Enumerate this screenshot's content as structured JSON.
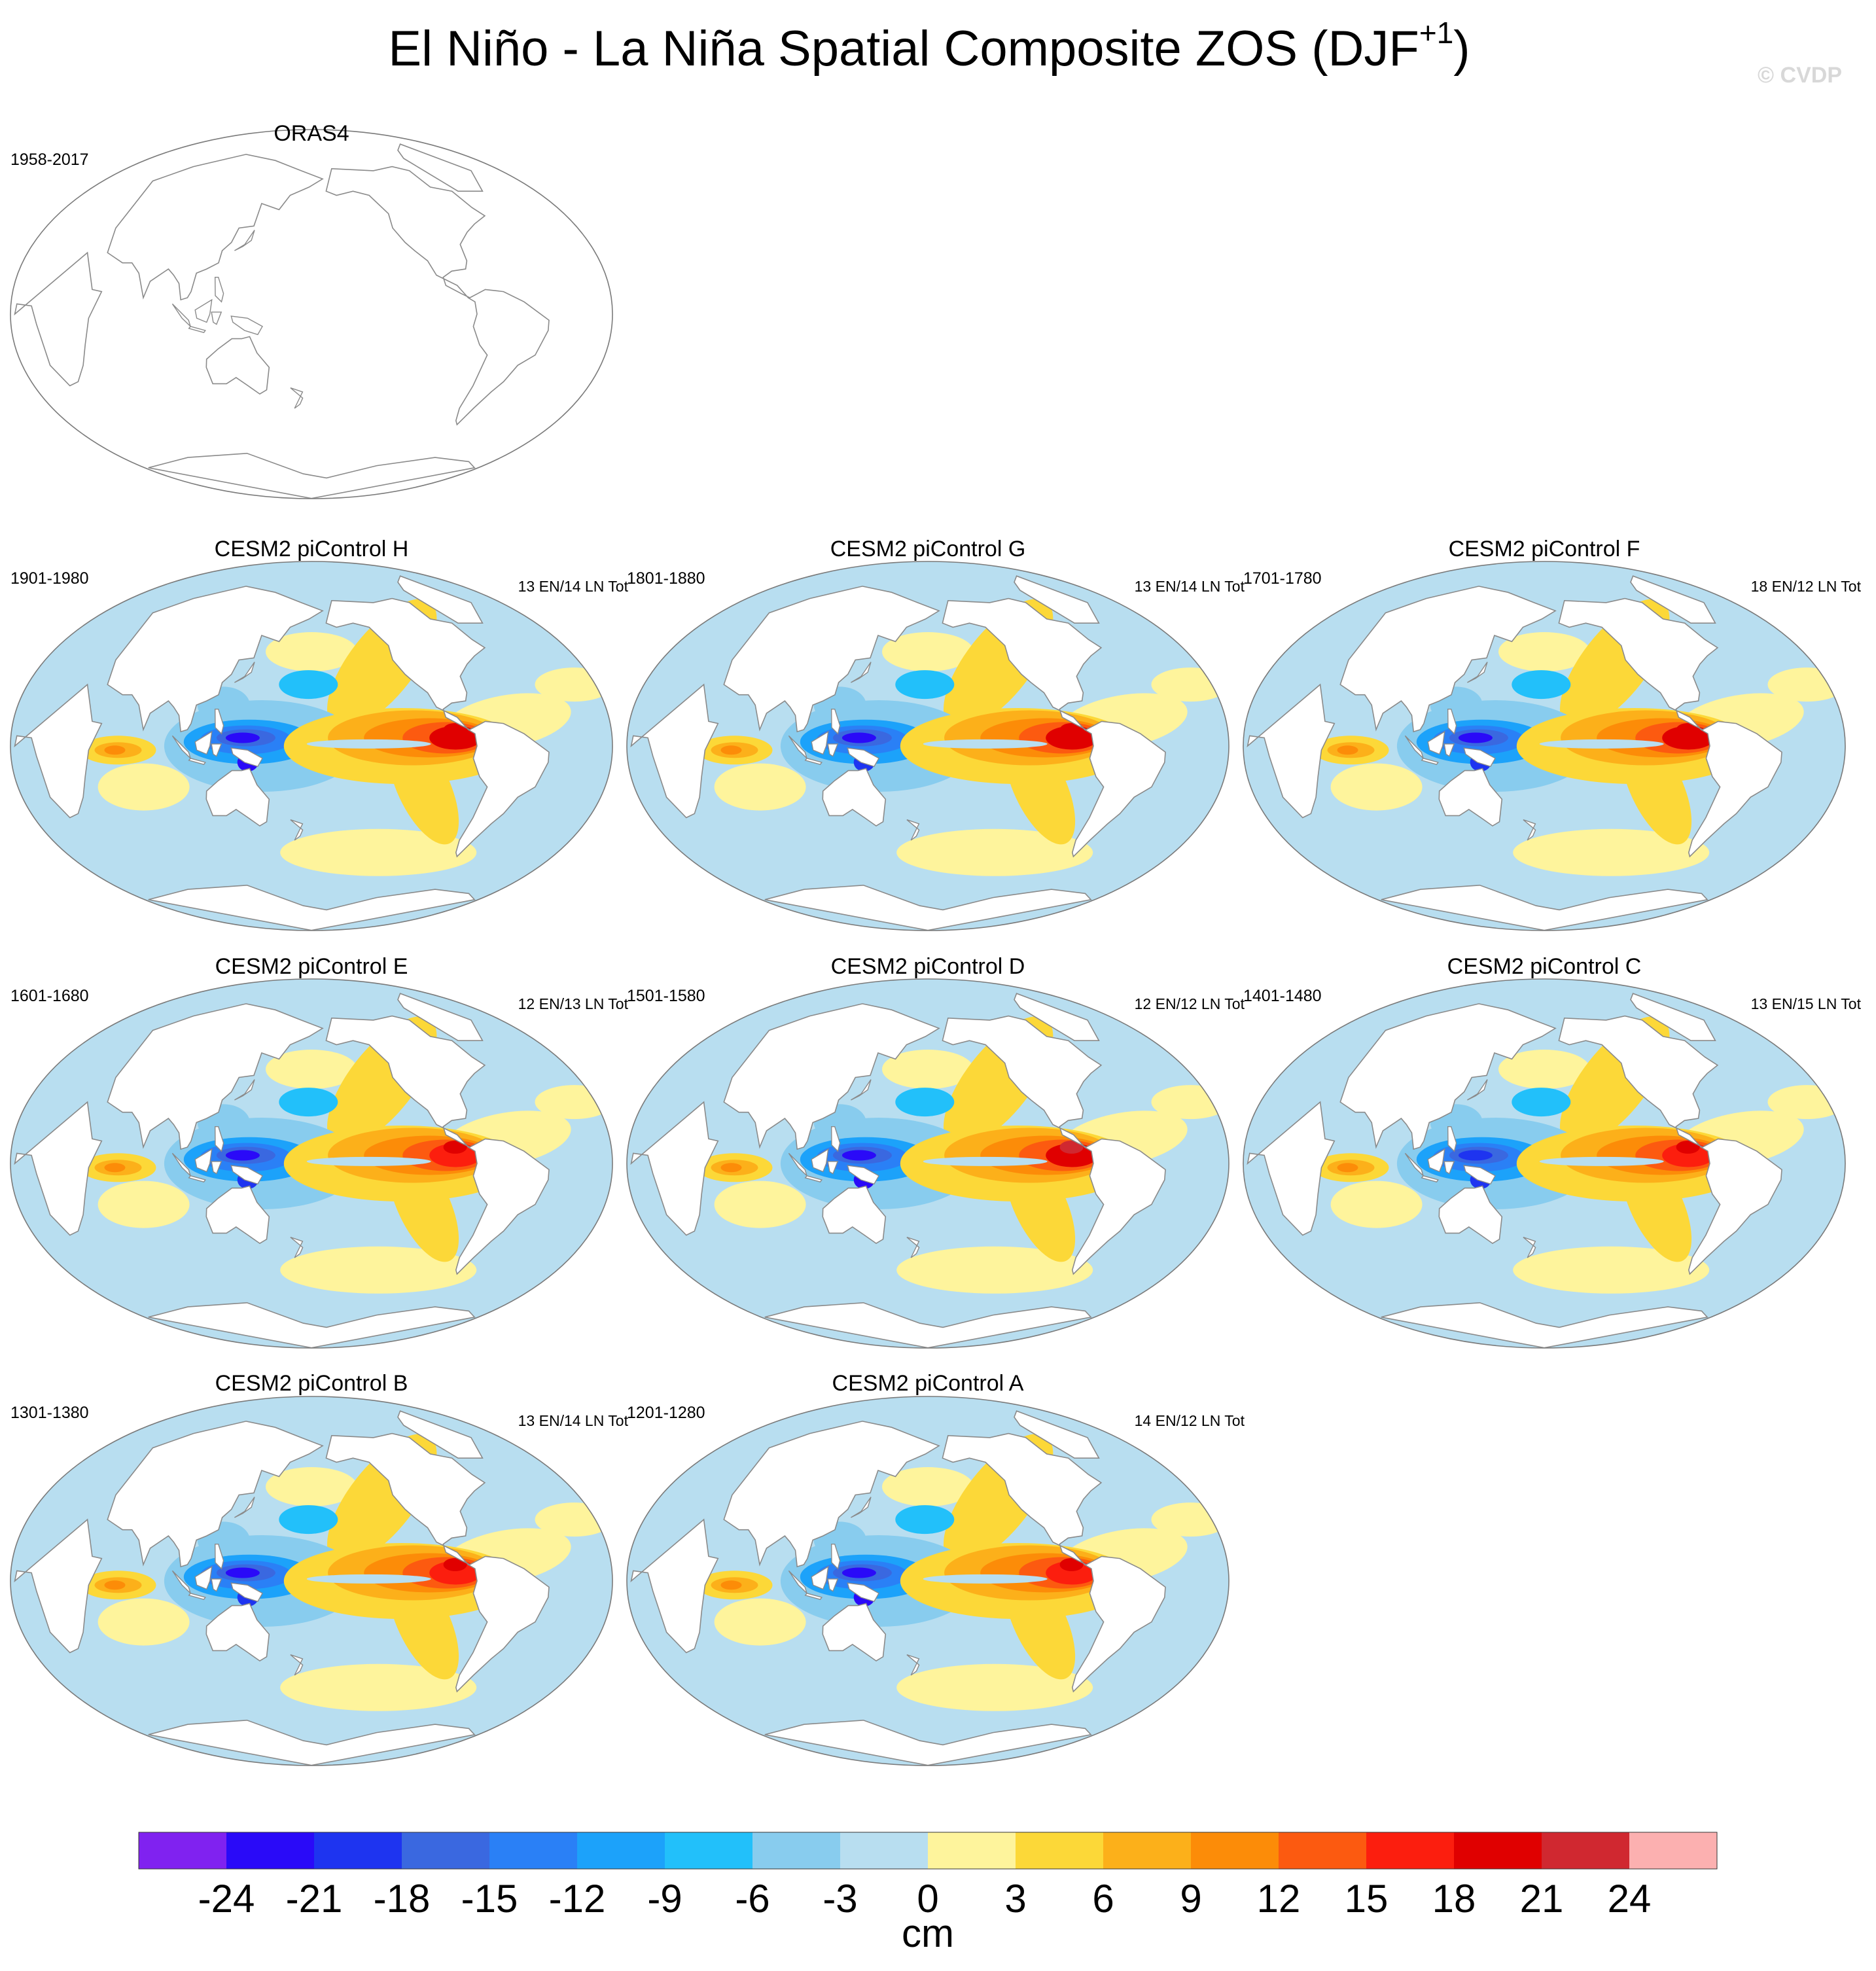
{
  "figure": {
    "title_main": "El Niño - La Niña Spatial Composite ZOS (DJF",
    "title_sup": "+1",
    "title_close": ")",
    "watermark": "© CVDP"
  },
  "colors": {
    "land": "#ffffff",
    "coast": "#8a8a8a",
    "missing": "#ffffff"
  },
  "chart_data": {
    "type": "map",
    "variable": "ZOS",
    "units": "cm",
    "panels": [
      {
        "id": "orig",
        "title": "ORAS4",
        "years": "1958-2017",
        "count": "",
        "has_data": false
      },
      {
        "id": "H",
        "title": "CESM2 piControl H",
        "years": "1901-1980",
        "count": "13 EN/14 LN Tot",
        "has_data": true,
        "warm_east_peak": 20,
        "cold_west_peak": -24
      },
      {
        "id": "G",
        "title": "CESM2 piControl G",
        "years": "1801-1880",
        "count": "13 EN/14 LN Tot",
        "has_data": true,
        "warm_east_peak": 20,
        "cold_west_peak": -23
      },
      {
        "id": "F",
        "title": "CESM2 piControl F",
        "years": "1701-1780",
        "count": "18 EN/12 LN Tot",
        "has_data": true,
        "warm_east_peak": 20,
        "cold_west_peak": -23
      },
      {
        "id": "E",
        "title": "CESM2 piControl E",
        "years": "1601-1680",
        "count": "12 EN/13 LN Tot",
        "has_data": true,
        "warm_east_peak": 19,
        "cold_west_peak": -23
      },
      {
        "id": "D",
        "title": "CESM2 piControl D",
        "years": "1501-1580",
        "count": "12 EN/12 LN Tot",
        "has_data": true,
        "warm_east_peak": 22,
        "cold_west_peak": -24
      },
      {
        "id": "C",
        "title": "CESM2 piControl C",
        "years": "1401-1480",
        "count": "13 EN/15 LN Tot",
        "has_data": true,
        "warm_east_peak": 19,
        "cold_west_peak": -22
      },
      {
        "id": "B",
        "title": "CESM2 piControl B",
        "years": "1301-1380",
        "count": "13 EN/14 LN Tot",
        "has_data": true,
        "warm_east_peak": 18,
        "cold_west_peak": -23
      },
      {
        "id": "A",
        "title": "CESM2 piControl A",
        "years": "1201-1280",
        "count": "14 EN/12 LN Tot",
        "has_data": true,
        "warm_east_peak": 18,
        "cold_west_peak": -24
      }
    ],
    "colorbar": {
      "levels": [
        -24,
        -21,
        -18,
        -15,
        -12,
        -9,
        -6,
        -3,
        0,
        3,
        6,
        9,
        12,
        15,
        18,
        21,
        24
      ],
      "labels": [
        "-24",
        "-21",
        "-18",
        "-15",
        "-12",
        "-9",
        "-6",
        "-3",
        "0",
        "3",
        "6",
        "9",
        "12",
        "15",
        "18",
        "21",
        "24"
      ],
      "colors": [
        "#8022f0",
        "#2a0af8",
        "#1e34f0",
        "#3a68e0",
        "#2a80f6",
        "#1ca2fa",
        "#22c0fa",
        "#88ccee",
        "#b8def0",
        "#fef49c",
        "#fcd838",
        "#fcb01a",
        "#fc8c08",
        "#fc5a10",
        "#fc1e0e",
        "#e00000",
        "#d02830",
        "#fcb0b0"
      ],
      "units_label": "cm"
    }
  }
}
